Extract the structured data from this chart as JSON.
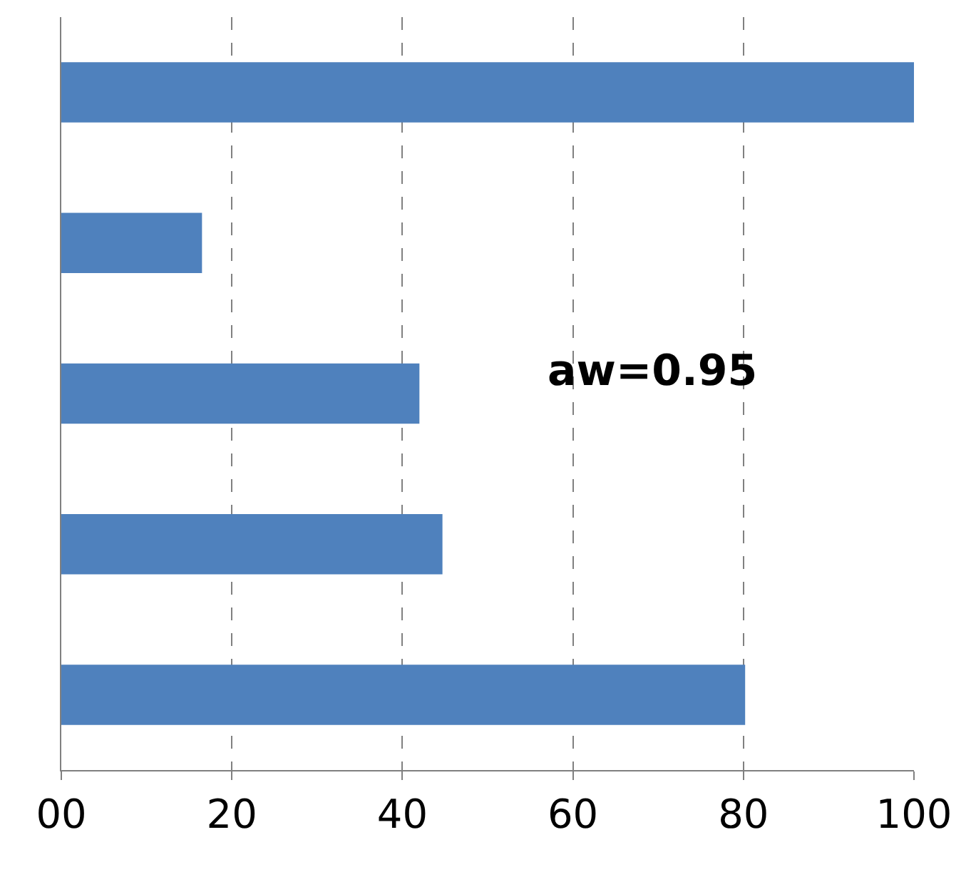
{
  "chart_data": {
    "type": "bar",
    "orientation": "horizontal",
    "categories": [
      null,
      null,
      null,
      null,
      null
    ],
    "values": [
      100,
      16.5,
      42,
      44.7,
      80.2
    ],
    "color": "#4f81bd",
    "xlim": [
      0,
      100
    ],
    "xticks": [
      {
        "value": 0,
        "label": "00"
      },
      20,
      40,
      60,
      80,
      100
    ],
    "grid": "x",
    "tick_labels": "x",
    "annotations": [
      "aw=0.95"
    ]
  }
}
